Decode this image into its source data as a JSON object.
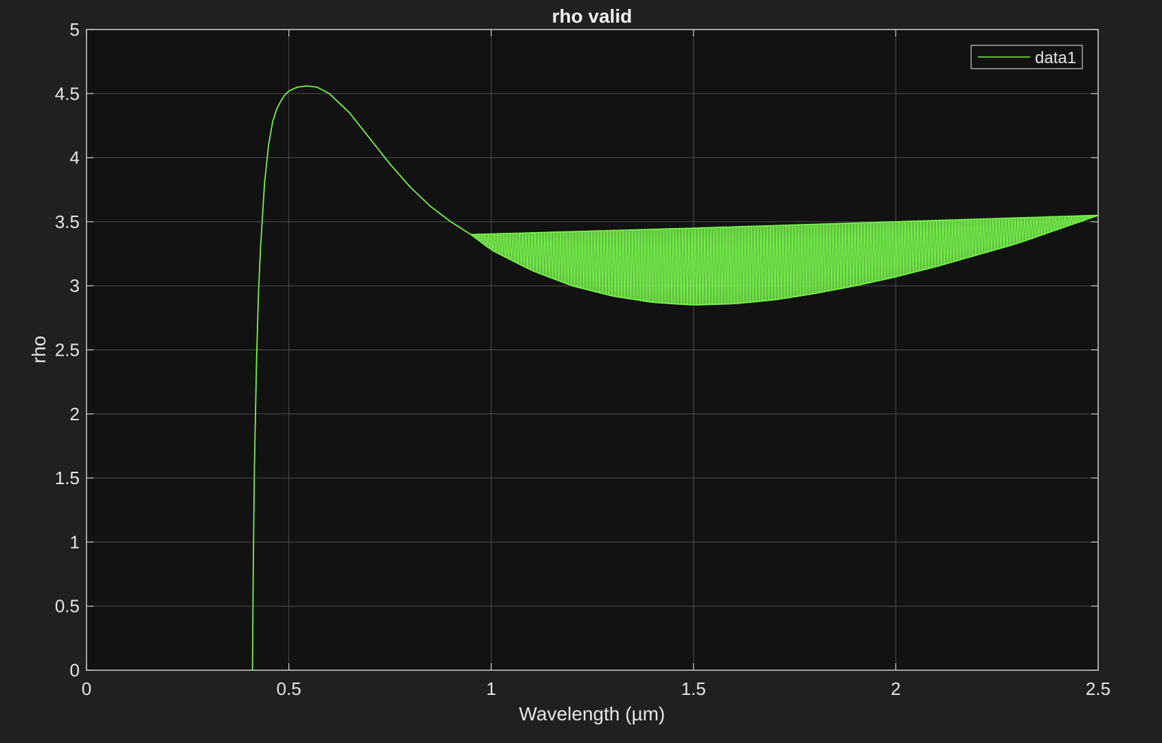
{
  "chart_data": {
    "type": "line",
    "title": "rho valid",
    "xlabel": "Wavelength (µm)",
    "ylabel": "rho",
    "xlim": [
      0,
      2.5
    ],
    "ylim": [
      0,
      5
    ],
    "x_ticks": [
      "0",
      "0.5",
      "1",
      "1.5",
      "2",
      "2.5"
    ],
    "y_ticks": [
      "0",
      "0.5",
      "1",
      "1.5",
      "2",
      "2.5",
      "3",
      "3.5",
      "4",
      "4.5",
      "5"
    ],
    "x_tick_values": [
      0,
      0.5,
      1,
      1.5,
      2,
      2.5
    ],
    "y_tick_values": [
      0,
      0.5,
      1,
      1.5,
      2,
      2.5,
      3,
      3.5,
      4,
      4.5,
      5
    ],
    "grid": true,
    "legend_position": "top-right",
    "colors": {
      "background": "#202020",
      "axes": "#121212",
      "grid": "#555555",
      "line": "#77f24c",
      "text": "#e6e6e6"
    },
    "series": [
      {
        "name": "data1",
        "x": [
          0.41,
          0.412,
          0.415,
          0.42,
          0.425,
          0.43,
          0.44,
          0.45,
          0.46,
          0.47,
          0.48,
          0.49,
          0.5,
          0.52,
          0.545,
          0.57,
          0.6,
          0.65,
          0.7,
          0.75,
          0.8,
          0.85,
          0.9,
          0.95
        ],
        "y": [
          0.0,
          0.8,
          1.6,
          2.4,
          2.95,
          3.3,
          3.8,
          4.1,
          4.28,
          4.38,
          4.44,
          4.49,
          4.52,
          4.55,
          4.56,
          4.55,
          4.5,
          4.35,
          4.15,
          3.95,
          3.77,
          3.62,
          3.5,
          3.4
        ],
        "band": {
          "x_start": 0.95,
          "x_end": 2.5,
          "upper_x": [
            0.95,
            1.5,
            2.0,
            2.5
          ],
          "upper_y": [
            3.4,
            3.45,
            3.5,
            3.55
          ],
          "lower_x": [
            0.95,
            1.0,
            1.1,
            1.2,
            1.3,
            1.4,
            1.5,
            1.6,
            1.7,
            1.8,
            1.9,
            2.0,
            2.1,
            2.2,
            2.3,
            2.4,
            2.5
          ],
          "lower_y": [
            3.4,
            3.28,
            3.12,
            3.0,
            2.92,
            2.87,
            2.85,
            2.86,
            2.89,
            2.94,
            3.0,
            3.07,
            3.15,
            3.24,
            3.33,
            3.44,
            3.55
          ]
        }
      }
    ]
  }
}
